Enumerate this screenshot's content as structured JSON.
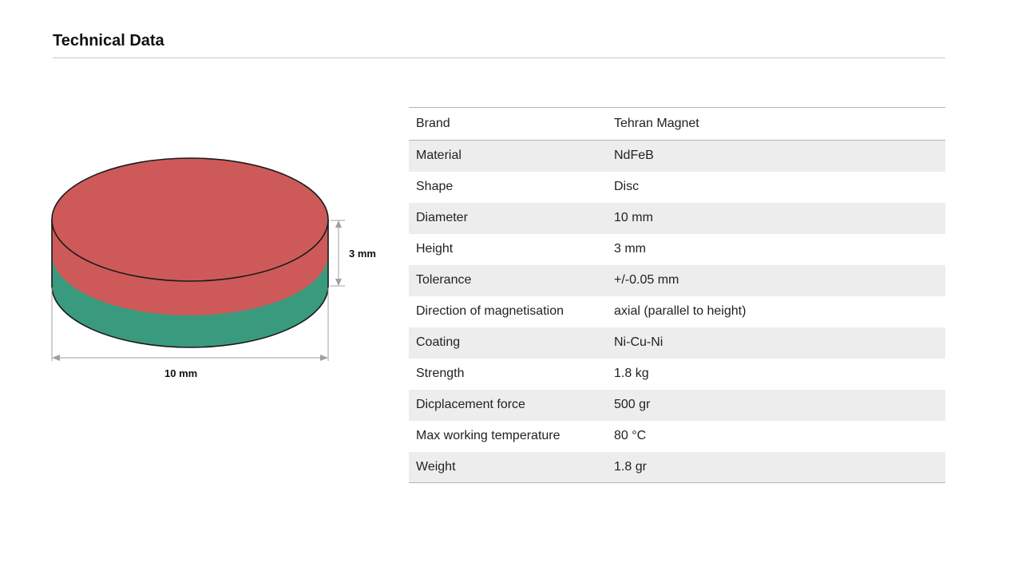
{
  "header": {
    "title": "Technical Data"
  },
  "figure": {
    "height_label": "3 mm",
    "diameter_label": "10 mm",
    "colors": {
      "north": "#cd5a58",
      "south": "#3a9a7e",
      "outline": "#1a1a1a",
      "dimension": "#a0a0a0"
    }
  },
  "specs": [
    {
      "property": "Brand",
      "value": "Tehran Magnet"
    },
    {
      "property": "Material",
      "value": "NdFeB"
    },
    {
      "property": "Shape",
      "value": "Disc"
    },
    {
      "property": "Diameter",
      "value": "10 mm"
    },
    {
      "property": "Height",
      "value": "3 mm"
    },
    {
      "property": "Tolerance",
      "value": "+/-0.05 mm"
    },
    {
      "property": "Direction of magnetisation",
      "value": "axial (parallel to height)"
    },
    {
      "property": "Coating",
      "value": "Ni-Cu-Ni"
    },
    {
      "property": "Strength",
      "value": "1.8 kg"
    },
    {
      "property": "Dicplacement force",
      "value": "500 gr"
    },
    {
      "property": "Max working temperature",
      "value": "80 °C"
    },
    {
      "property": "Weight",
      "value": "1.8 gr"
    }
  ]
}
